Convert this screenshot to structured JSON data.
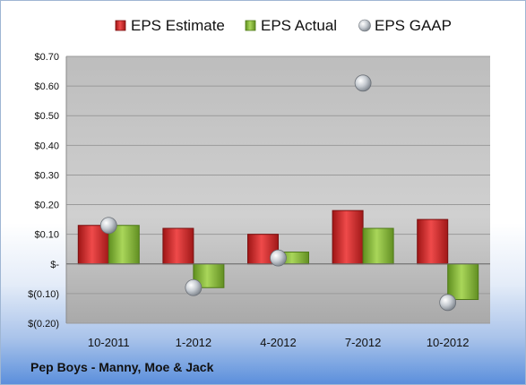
{
  "company_label": "Pep Boys - Manny, Moe & Jack",
  "chart_data": {
    "type": "bar",
    "categories": [
      "10-2011",
      "1-2012",
      "4-2012",
      "7-2012",
      "10-2012"
    ],
    "series": [
      {
        "name": "EPS Estimate",
        "type": "bar",
        "color": "#d42b2b",
        "values": [
          0.13,
          0.12,
          0.1,
          0.18,
          0.15
        ]
      },
      {
        "name": "EPS Actual",
        "type": "bar",
        "color": "#8dbf3c",
        "values": [
          0.13,
          -0.08,
          0.04,
          0.12,
          -0.12
        ]
      },
      {
        "name": "EPS GAAP",
        "type": "scatter",
        "color": "#b9bec4",
        "values": [
          0.13,
          -0.08,
          0.02,
          0.61,
          -0.13
        ]
      }
    ],
    "ylim": [
      -0.2,
      0.7
    ],
    "yticks": [
      0.7,
      0.6,
      0.5,
      0.4,
      0.3,
      0.2,
      0.1,
      0,
      -0.1,
      -0.2
    ],
    "ytick_labels": [
      "$0.70",
      "$0.60",
      "$0.50",
      "$0.40",
      "$0.30",
      "$0.20",
      "$0.10",
      "$-",
      "$(0.10)",
      "$(0.20)"
    ],
    "legend_position": "top",
    "grid": true
  }
}
